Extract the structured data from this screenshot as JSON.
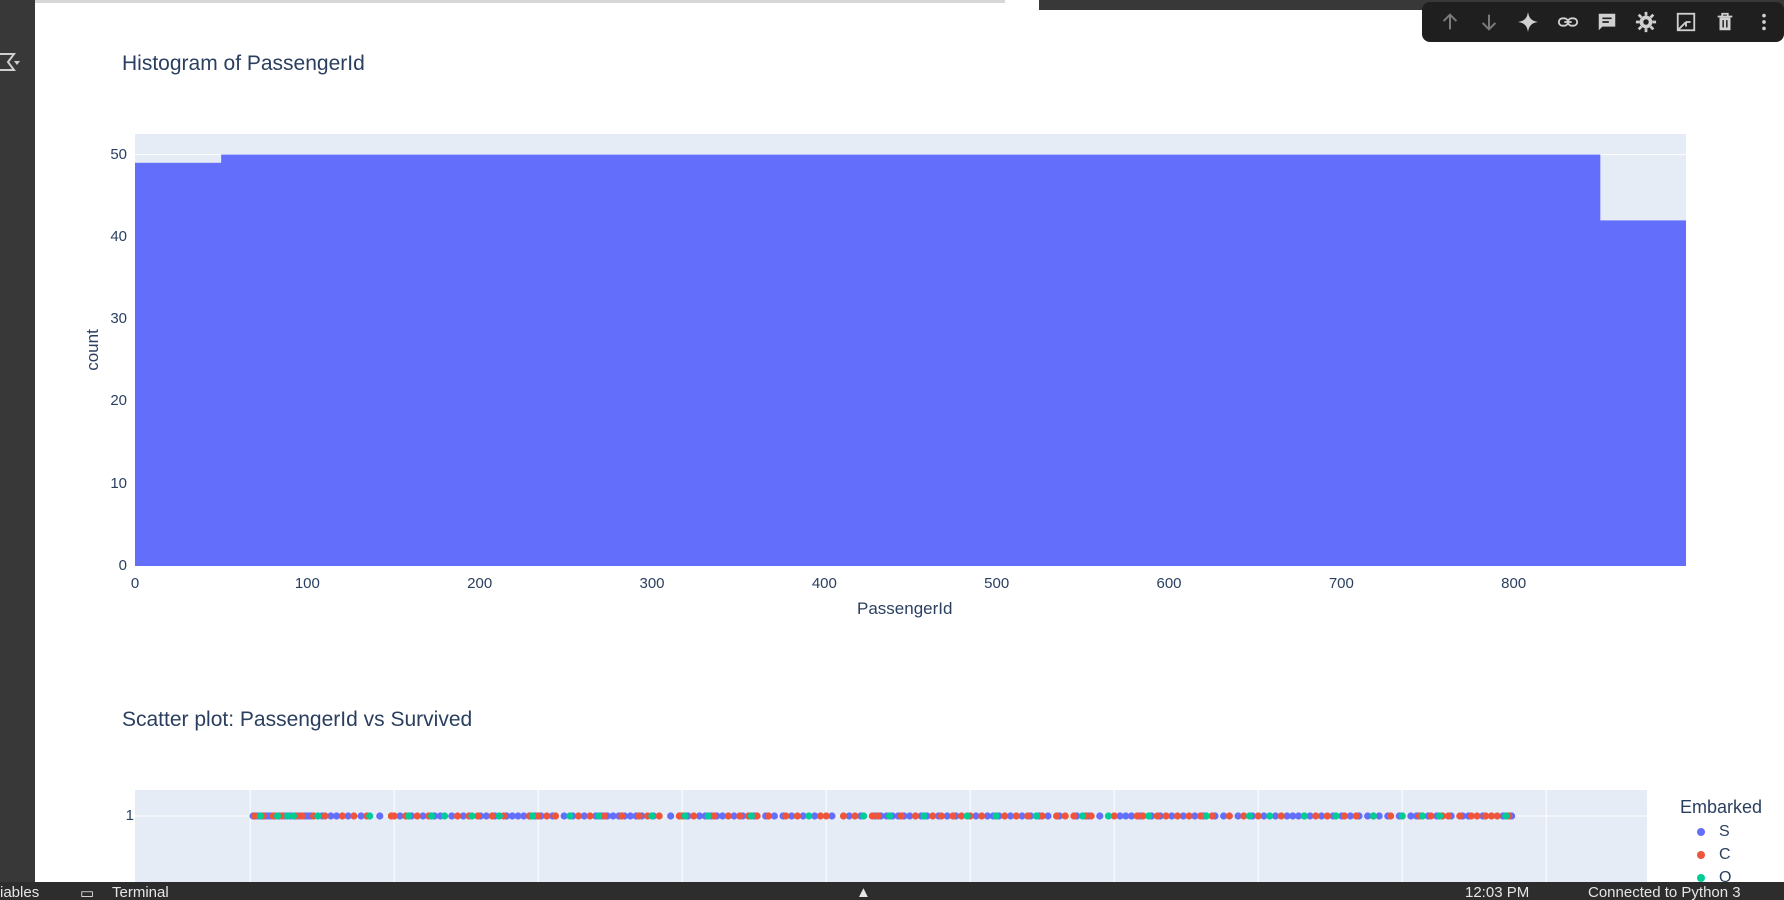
{
  "toolbar": {
    "icons": [
      "arrow-up-icon",
      "arrow-down-icon",
      "sparkle-icon",
      "link-icon",
      "comment-icon",
      "gear-icon",
      "open-in-tab-icon",
      "trash-icon",
      "more-vert-icon"
    ]
  },
  "colors": {
    "histogram_bar": "#636efa",
    "plot_bg": "#e5ecf6",
    "series_S": "#636efa",
    "series_C": "#ef553b",
    "series_Q": "#00cc96"
  },
  "statusbar": {
    "left_partial": "iables",
    "terminal_label": "Terminal",
    "time_partial": "12:03 PM",
    "connection_partial": "Connected to Python 3"
  },
  "chart_data": [
    {
      "type": "bar",
      "title": "Histogram of PassengerId",
      "xlabel": "PassengerId",
      "ylabel": "count",
      "bin_edges": [
        0,
        50,
        100,
        150,
        200,
        250,
        300,
        350,
        400,
        450,
        500,
        550,
        600,
        650,
        700,
        750,
        800,
        850,
        900
      ],
      "values": [
        49,
        50,
        50,
        50,
        50,
        50,
        50,
        50,
        50,
        50,
        50,
        50,
        50,
        50,
        50,
        50,
        50,
        42
      ],
      "xlim": [
        0,
        900
      ],
      "ylim": [
        0,
        52.5
      ],
      "xticks": [
        "0",
        "100",
        "200",
        "300",
        "400",
        "500",
        "600",
        "700",
        "800"
      ],
      "yticks": [
        "0",
        "10",
        "20",
        "30",
        "40",
        "50"
      ],
      "grid": true
    },
    {
      "type": "scatter",
      "title": "Scatter plot: PassengerId vs Survived",
      "yticks": [
        "1"
      ],
      "legend_title": "Embarked",
      "legend": [
        "S",
        "C",
        "Q"
      ],
      "legend_placement": "right",
      "series": [
        {
          "name": "S",
          "x": [
            2,
            4,
            6,
            8,
            10,
            12,
            14,
            17,
            20,
            24,
            28,
            31,
            34,
            38,
            40,
            42,
            50,
            56,
            60,
            68,
            77,
            90,
            104,
            112,
            120,
            128,
            132,
            140,
            148,
            160,
            164,
            170,
            178,
            182,
            186,
            190,
            194,
            198,
            202,
            210,
            218,
            224,
            232,
            240,
            244,
            248,
            252,
            256,
            260,
            264,
            268,
            272,
            280,
            292,
            304,
            312,
            316,
            320,
            324,
            328,
            336,
            342,
            350,
            358,
            364,
            370,
            376,
            384,
            392,
            404,
            416,
            424,
            434,
            438,
            442,
            446,
            450,
            454,
            458,
            466,
            470,
            478,
            484,
            490,
            504,
            512,
            516,
            520,
            528,
            536,
            542,
            548,
            554,
            562,
            574,
            582,
            590,
            604,
            608,
            612,
            618,
            626,
            632,
            640,
            648,
            656,
            662,
            670,
            676,
            686,
            696,
            704,
            712,
            720,
            724,
            728,
            736,
            744,
            752,
            758,
            764,
            770,
            776,
            784,
            790,
            798,
            806,
            810,
            818,
            824,
            834,
            842,
            846,
            856,
            870,
            876
          ],
          "y": [
            1,
            1,
            1,
            1,
            1,
            1,
            1,
            1,
            1,
            1,
            1,
            1,
            1,
            1,
            1,
            1,
            1,
            1,
            1,
            1,
            1,
            1,
            1,
            1,
            1,
            1,
            1,
            1,
            1,
            1,
            1,
            1,
            1,
            1,
            1,
            1,
            1,
            1,
            1,
            1,
            1,
            1,
            1,
            1,
            1,
            1,
            1,
            1,
            1,
            1,
            1,
            1,
            1,
            1,
            1,
            1,
            1,
            1,
            1,
            1,
            1,
            1,
            1,
            1,
            1,
            1,
            1,
            1,
            1,
            1,
            1,
            1,
            1,
            1,
            1,
            1,
            1,
            1,
            1,
            1,
            1,
            1,
            1,
            1,
            1,
            1,
            1,
            1,
            1,
            1,
            1,
            1,
            1,
            1,
            1,
            1,
            1,
            1,
            1,
            1,
            1,
            1,
            1,
            1,
            1,
            1,
            1,
            1,
            1,
            1,
            1,
            1,
            1,
            1,
            1,
            1,
            1,
            1,
            1,
            1,
            1,
            1,
            1,
            1,
            1,
            1,
            1,
            1,
            1,
            1,
            1,
            1,
            1,
            1,
            1,
            1
          ]
        },
        {
          "name": "C",
          "x": [
            3,
            9,
            16,
            22,
            32,
            36,
            44,
            52,
            64,
            72,
            81,
            98,
            100,
            108,
            116,
            124,
            144,
            152,
            158,
            168,
            176,
            194,
            200,
            206,
            212,
            228,
            236,
            246,
            258,
            270,
            276,
            284,
            298,
            300,
            308,
            322,
            332,
            340,
            346,
            352,
            360,
            372,
            380,
            396,
            400,
            412,
            420,
            432,
            436,
            452,
            462,
            474,
            480,
            488,
            494,
            500,
            508,
            524,
            532,
            540,
            550,
            560,
            566,
            572,
            580,
            584,
            600,
            616,
            620,
            630,
            636,
            644,
            652,
            660,
            668,
            680,
            690,
            700,
            716,
            732,
            740,
            748,
            760,
            768,
            780,
            792,
            800,
            812,
            820,
            828,
            832,
            840,
            848,
            852,
            858,
            862,
            866,
            874
          ],
          "y": [
            1,
            1,
            1,
            1,
            1,
            1,
            1,
            1,
            1,
            1,
            1,
            1,
            1,
            1,
            1,
            1,
            1,
            1,
            1,
            1,
            1,
            1,
            1,
            1,
            1,
            1,
            1,
            1,
            1,
            1,
            1,
            1,
            1,
            1,
            1,
            1,
            1,
            1,
            1,
            1,
            1,
            1,
            1,
            1,
            1,
            1,
            1,
            1,
            1,
            1,
            1,
            1,
            1,
            1,
            1,
            1,
            1,
            1,
            1,
            1,
            1,
            1,
            1,
            1,
            1,
            1,
            1,
            1,
            1,
            1,
            1,
            1,
            1,
            1,
            1,
            1,
            1,
            1,
            1,
            1,
            1,
            1,
            1,
            1,
            1,
            1,
            1,
            1,
            1,
            1,
            1,
            1,
            1,
            1,
            1,
            1,
            1,
            1
          ]
        },
        {
          "name": "Q",
          "x": [
            7,
            19,
            26,
            30,
            47,
            83,
            110,
            126,
            135,
            154,
            173,
            196,
            222,
            242,
            279,
            302,
            318,
            348,
            388,
            426,
            444,
            468,
            498,
            518,
            546,
            578,
            596,
            624,
            664,
            694,
            708,
            732,
            754,
            780,
            800,
            814,
            826,
            872
          ],
          "y": [
            1,
            1,
            1,
            1,
            1,
            1,
            1,
            1,
            1,
            1,
            1,
            1,
            1,
            1,
            1,
            1,
            1,
            1,
            1,
            1,
            1,
            1,
            1,
            1,
            1,
            1,
            1,
            1,
            1,
            1,
            1,
            1,
            1,
            1,
            1,
            1,
            1,
            1
          ]
        }
      ]
    }
  ]
}
